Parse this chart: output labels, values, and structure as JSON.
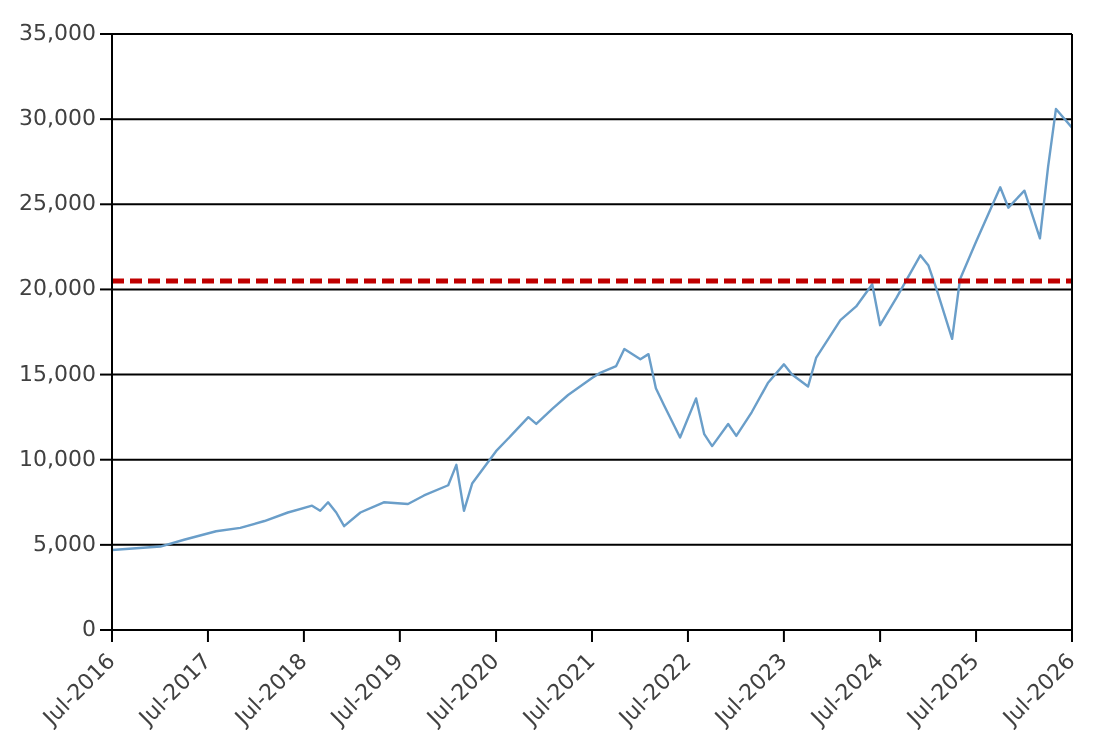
{
  "chart_data": {
    "type": "line",
    "x": [
      "2016-07",
      "2016-10",
      "2017-01",
      "2017-04",
      "2017-08",
      "2017-11",
      "2018-02",
      "2018-05",
      "2018-08",
      "2018-09",
      "2018-10",
      "2018-11",
      "2018-12",
      "2019-02",
      "2019-05",
      "2019-08",
      "2019-10",
      "2020-01",
      "2020-02",
      "2020-03",
      "2020-04",
      "2020-07",
      "2020-09",
      "2020-11",
      "2020-12",
      "2021-02",
      "2021-04",
      "2021-07",
      "2021-08",
      "2021-10",
      "2021-11",
      "2022-01",
      "2022-02",
      "2022-03",
      "2022-04",
      "2022-06",
      "2022-08",
      "2022-09",
      "2022-10",
      "2022-12",
      "2023-01",
      "2023-03",
      "2023-05",
      "2023-07",
      "2023-08",
      "2023-10",
      "2023-11",
      "2024-02",
      "2024-04",
      "2024-06",
      "2024-07",
      "2024-09",
      "2024-12",
      "2025-01",
      "2025-02",
      "2025-04",
      "2025-05",
      "2025-07",
      "2025-10",
      "2025-11",
      "2026-01",
      "2026-03",
      "2026-04",
      "2026-05",
      "2026-07"
    ],
    "series": [
      {
        "color": "#6a9ec9",
        "values": [
          4700,
          4800,
          4900,
          5300,
          5800,
          6000,
          6400,
          6900,
          7300,
          7000,
          7500,
          6900,
          6100,
          6900,
          7500,
          7400,
          7900,
          8500,
          9700,
          7000,
          8600,
          10500,
          11500,
          12500,
          12100,
          13000,
          13800,
          14800,
          15100,
          15500,
          16500,
          15900,
          16200,
          14200,
          13200,
          11300,
          13600,
          11500,
          10800,
          12100,
          11400,
          12800,
          14500,
          15600,
          15000,
          14300,
          16000,
          18200,
          19000,
          20300,
          17900,
          19500,
          22000,
          21400,
          20000,
          17100,
          20600,
          22800,
          26000,
          24800,
          25800,
          23000,
          27200,
          30600,
          29500
        ]
      }
    ],
    "xlim": [
      "2016-07",
      "2026-07"
    ],
    "xticks": [
      {
        "value": "2016-07",
        "label": "Jul-2016"
      },
      {
        "value": "2017-07",
        "label": "Jul-2017"
      },
      {
        "value": "2018-07",
        "label": "Jul-2018"
      },
      {
        "value": "2019-07",
        "label": "Jul-2019"
      },
      {
        "value": "2020-07",
        "label": "Jul-2020"
      },
      {
        "value": "2021-07",
        "label": "Jul-2021"
      },
      {
        "value": "2022-07",
        "label": "Jul-2022"
      },
      {
        "value": "2023-07",
        "label": "Jul-2023"
      },
      {
        "value": "2024-07",
        "label": "Jul-2024"
      },
      {
        "value": "2025-07",
        "label": "Jul-2025"
      },
      {
        "value": "2026-07",
        "label": "Jul-2026"
      }
    ],
    "ylim": [
      0,
      35000
    ],
    "yticks": [
      0,
      {
        "value": 5000,
        "label": "5,000"
      },
      {
        "value": 10000,
        "label": "10,000"
      },
      {
        "value": 15000,
        "label": "15,000"
      },
      {
        "value": 20000,
        "label": "20,000"
      },
      {
        "value": 25000,
        "label": "25,000"
      },
      {
        "value": 30000,
        "label": "30,000"
      },
      {
        "value": 35000,
        "label": "35,000"
      }
    ],
    "grid": "y",
    "ref_lines": [
      {
        "axis": "y",
        "value": 20500,
        "color": "#c00000",
        "line_style": "dashed"
      }
    ]
  }
}
